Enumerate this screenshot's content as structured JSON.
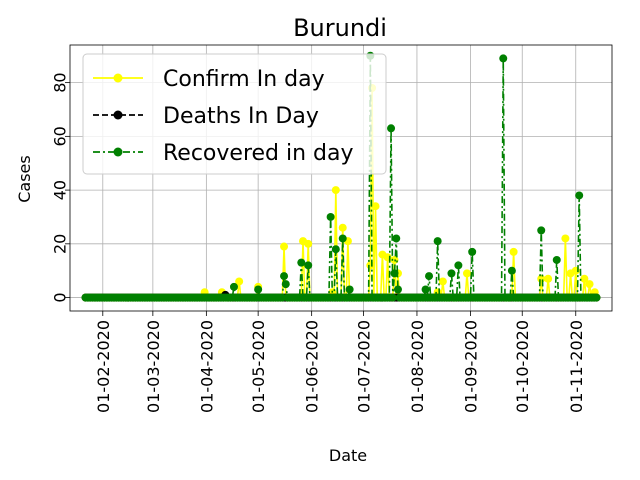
{
  "chart_data": {
    "type": "line",
    "title": "Burundi",
    "xlabel": "Date",
    "ylabel": "Cases",
    "x_start": "2020-01-22",
    "x_end": "2020-11-13",
    "xlim": [
      "2020-01-13",
      "2020-11-22"
    ],
    "ylim": [
      -5,
      94
    ],
    "grid": true,
    "legend_position": "top-left",
    "x_ticks": [
      "01-02-2020",
      "01-03-2020",
      "01-04-2020",
      "01-05-2020",
      "01-06-2020",
      "01-07-2020",
      "01-08-2020",
      "01-09-2020",
      "01-10-2020",
      "01-11-2020"
    ],
    "y_ticks": [
      0,
      20,
      40,
      60,
      80
    ],
    "series": [
      {
        "name": "Confirm In day",
        "color": "#ffff00",
        "linestyle": "solid",
        "points": [
          [
            "2020-03-31",
            2
          ],
          [
            "2020-04-10",
            2
          ],
          [
            "2020-04-20",
            6
          ],
          [
            "2020-05-01",
            4
          ],
          [
            "2020-05-16",
            19
          ],
          [
            "2020-05-27",
            21
          ],
          [
            "2020-05-30",
            20
          ],
          [
            "2020-06-13",
            2
          ],
          [
            "2020-06-15",
            40
          ],
          [
            "2020-06-19",
            26
          ],
          [
            "2020-06-22",
            21
          ],
          [
            "2020-07-05",
            12
          ],
          [
            "2020-07-06",
            78
          ],
          [
            "2020-07-08",
            34
          ],
          [
            "2020-07-12",
            16
          ],
          [
            "2020-07-15",
            15
          ],
          [
            "2020-07-19",
            14
          ],
          [
            "2020-07-21",
            9
          ],
          [
            "2020-08-13",
            2
          ],
          [
            "2020-08-16",
            6
          ],
          [
            "2020-08-30",
            9
          ],
          [
            "2020-09-26",
            17
          ],
          [
            "2020-10-12",
            7
          ],
          [
            "2020-10-16",
            7
          ],
          [
            "2020-10-26",
            22
          ],
          [
            "2020-10-29",
            9
          ],
          [
            "2020-11-01",
            10
          ],
          [
            "2020-11-06",
            7
          ],
          [
            "2020-11-09",
            5
          ],
          [
            "2020-11-12",
            2
          ]
        ]
      },
      {
        "name": "Deaths In Day",
        "color": "#000000",
        "linestyle": "dashed",
        "points": [
          [
            "2020-04-12",
            1
          ]
        ]
      },
      {
        "name": "Recovered in day",
        "color": "#008000",
        "linestyle": "dashdot",
        "points": [
          [
            "2020-04-17",
            4
          ],
          [
            "2020-05-01",
            3
          ],
          [
            "2020-05-16",
            8
          ],
          [
            "2020-05-17",
            5
          ],
          [
            "2020-05-26",
            13
          ],
          [
            "2020-05-30",
            12
          ],
          [
            "2020-06-12",
            30
          ],
          [
            "2020-06-15",
            18
          ],
          [
            "2020-06-19",
            22
          ],
          [
            "2020-06-23",
            3
          ],
          [
            "2020-07-05",
            90
          ],
          [
            "2020-07-17",
            63
          ],
          [
            "2020-07-20",
            22
          ],
          [
            "2020-07-19",
            9
          ],
          [
            "2020-07-21",
            3
          ],
          [
            "2020-08-06",
            3
          ],
          [
            "2020-08-08",
            8
          ],
          [
            "2020-08-13",
            21
          ],
          [
            "2020-08-21",
            9
          ],
          [
            "2020-08-25",
            12
          ],
          [
            "2020-09-02",
            17
          ],
          [
            "2020-09-20",
            89
          ],
          [
            "2020-09-25",
            10
          ],
          [
            "2020-10-12",
            25
          ],
          [
            "2020-10-21",
            14
          ],
          [
            "2020-11-03",
            38
          ]
        ]
      }
    ]
  }
}
